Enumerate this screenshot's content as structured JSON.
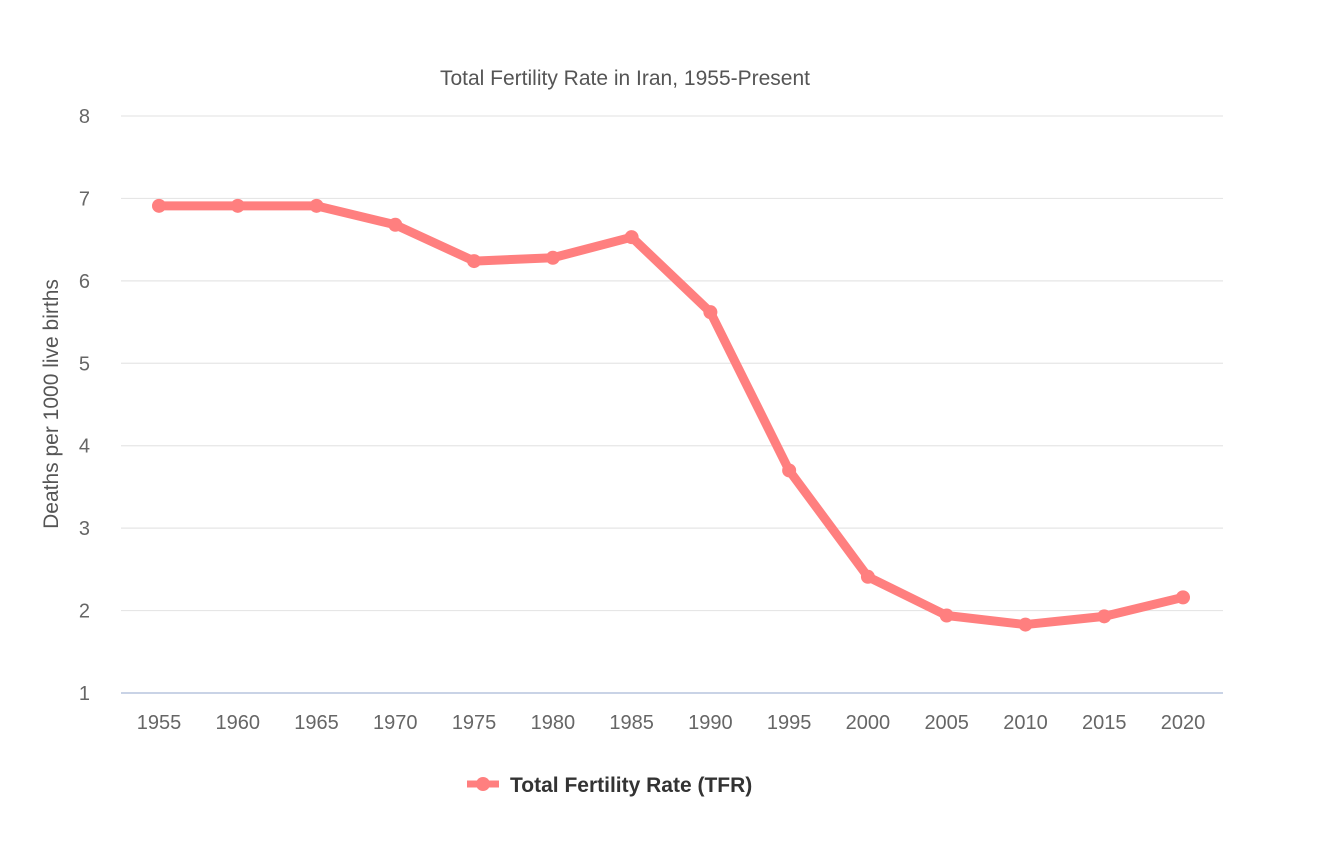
{
  "chart_data": {
    "type": "line",
    "title": "Total Fertility Rate in Iran, 1955-Present",
    "xlabel": "",
    "ylabel": "Deaths per 1000 live births",
    "ylim": [
      1,
      8
    ],
    "yticks": [
      "1",
      "2",
      "3",
      "4",
      "5",
      "6",
      "7",
      "8"
    ],
    "categories": [
      "1955",
      "1960",
      "1965",
      "1970",
      "1975",
      "1980",
      "1985",
      "1990",
      "1995",
      "2000",
      "2005",
      "2010",
      "2015",
      "2020"
    ],
    "series": [
      {
        "name": "Total Fertility Rate (TFR)",
        "color": "#ff7f7f",
        "values": [
          6.91,
          6.91,
          6.91,
          6.68,
          6.24,
          6.28,
          6.53,
          5.62,
          3.7,
          2.41,
          1.94,
          1.83,
          1.93,
          2.16
        ]
      }
    ],
    "grid": true,
    "legend": "bottom-center"
  }
}
